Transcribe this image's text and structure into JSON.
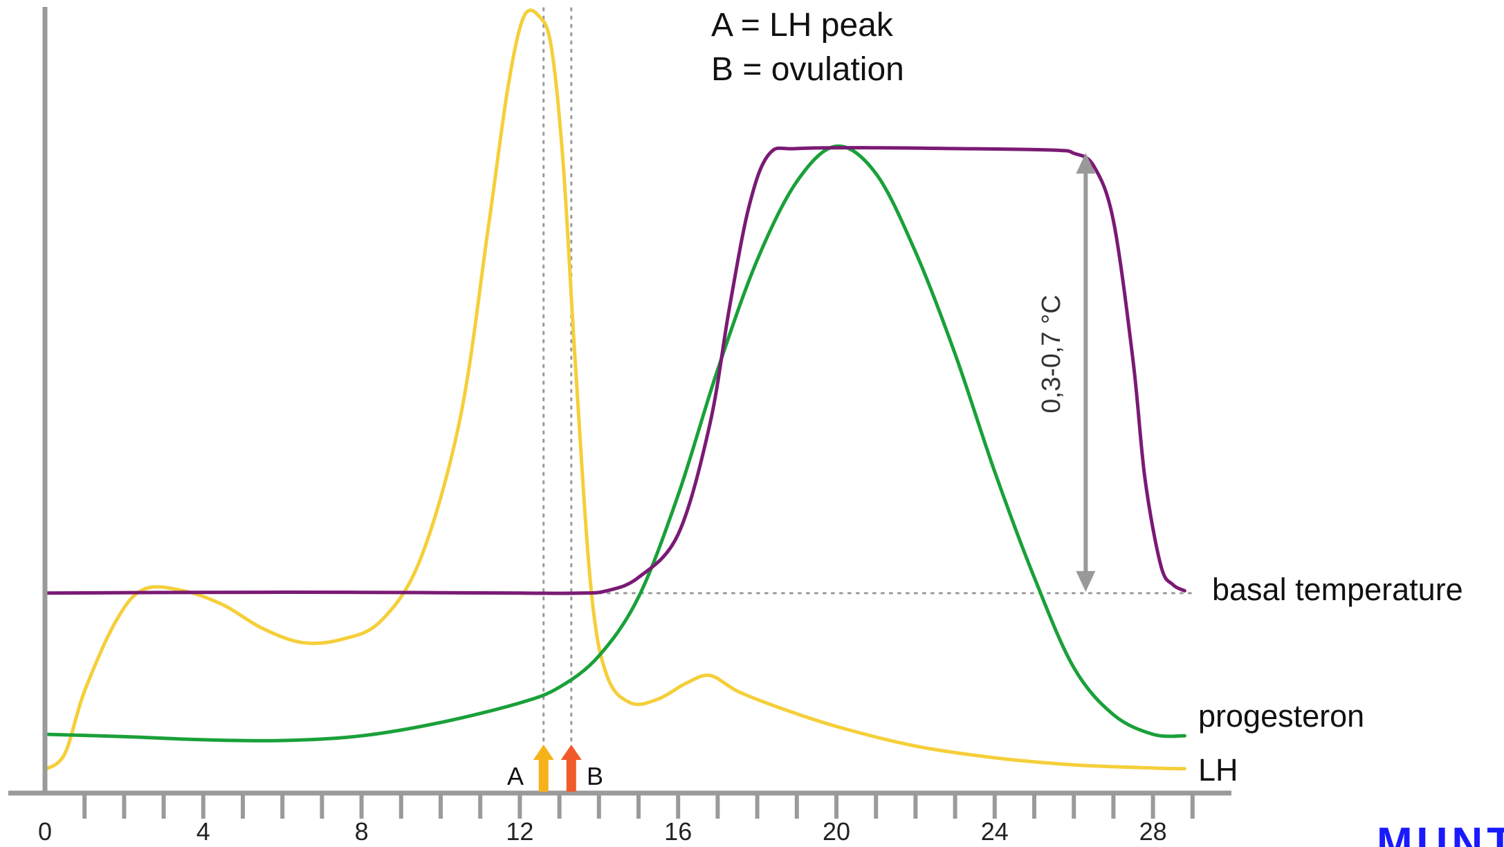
{
  "chart_data": {
    "type": "line",
    "title": "",
    "xlabel": "",
    "ylabel": "",
    "xlim": [
      0,
      29
    ],
    "ylim": [
      0,
      100
    ],
    "x_tick_labels": [
      "0",
      "4",
      "8",
      "12",
      "16",
      "20",
      "24",
      "28"
    ],
    "x_tick_values": [
      0,
      4,
      8,
      12,
      16,
      20,
      24,
      28
    ],
    "x_minor_ticks_every": 1,
    "grid": false,
    "legend": {
      "placement": "top-center",
      "lines": [
        "A = LH peak",
        "B = ovulation"
      ]
    },
    "series": [
      {
        "name": "LH",
        "color": "#f5cf3a",
        "points": [
          [
            0,
            3
          ],
          [
            0.5,
            5
          ],
          [
            1,
            13
          ],
          [
            1.8,
            22
          ],
          [
            2.5,
            26
          ],
          [
            3.5,
            25.8
          ],
          [
            4.5,
            24
          ],
          [
            5.5,
            21
          ],
          [
            6.5,
            19.2
          ],
          [
            7.5,
            19.6
          ],
          [
            8.5,
            22
          ],
          [
            9.5,
            30
          ],
          [
            10.5,
            48
          ],
          [
            11.2,
            72
          ],
          [
            11.7,
            90
          ],
          [
            12.1,
            99
          ],
          [
            12.5,
            99
          ],
          [
            12.8,
            95
          ],
          [
            13.1,
            80
          ],
          [
            13.4,
            55
          ],
          [
            13.8,
            26
          ],
          [
            14.2,
            15
          ],
          [
            14.8,
            11.5
          ],
          [
            15.5,
            12
          ],
          [
            16.2,
            14
          ],
          [
            16.8,
            15
          ],
          [
            17.5,
            13
          ],
          [
            18.5,
            11
          ],
          [
            20,
            8.5
          ],
          [
            22,
            6
          ],
          [
            24,
            4.5
          ],
          [
            26,
            3.6
          ],
          [
            28,
            3.2
          ],
          [
            28.8,
            3.1
          ]
        ]
      },
      {
        "name": "progesteron",
        "color": "#1aa03a",
        "points": [
          [
            0,
            7.5
          ],
          [
            2,
            7.2
          ],
          [
            4,
            6.8
          ],
          [
            6,
            6.7
          ],
          [
            8,
            7.3
          ],
          [
            10,
            9
          ],
          [
            12,
            11.5
          ],
          [
            13,
            13.5
          ],
          [
            14,
            17.5
          ],
          [
            15,
            25
          ],
          [
            16,
            38
          ],
          [
            17,
            54
          ],
          [
            18,
            68
          ],
          [
            19,
            78
          ],
          [
            20,
            82.5
          ],
          [
            21,
            79
          ],
          [
            22,
            69
          ],
          [
            23,
            56
          ],
          [
            24,
            41
          ],
          [
            25,
            27.5
          ],
          [
            26,
            16
          ],
          [
            27,
            10
          ],
          [
            28,
            7.5
          ],
          [
            28.8,
            7.3
          ]
        ]
      },
      {
        "name": "basal temperature",
        "color": "#7a1a74",
        "points": [
          [
            0,
            25.5
          ],
          [
            4,
            25.6
          ],
          [
            8,
            25.6
          ],
          [
            12,
            25.5
          ],
          [
            13.5,
            25.5
          ],
          [
            14.2,
            25.8
          ],
          [
            15,
            27.5
          ],
          [
            16,
            33
          ],
          [
            16.8,
            47
          ],
          [
            17.3,
            62
          ],
          [
            17.8,
            75
          ],
          [
            18.3,
            81.5
          ],
          [
            19,
            82.2
          ],
          [
            21,
            82.3
          ],
          [
            23,
            82.2
          ],
          [
            25.5,
            82
          ],
          [
            26,
            81.6
          ],
          [
            26.5,
            80
          ],
          [
            27,
            73
          ],
          [
            27.5,
            55
          ],
          [
            27.8,
            40
          ],
          [
            28.2,
            29
          ],
          [
            28.5,
            26.6
          ],
          [
            28.8,
            25.8
          ]
        ]
      }
    ],
    "baseline_dotted_y": 25.5,
    "markers": [
      {
        "label": "A",
        "x": 12.6,
        "color": "#f7b21a"
      },
      {
        "label": "B",
        "x": 13.3,
        "color": "#f15a29"
      }
    ],
    "range_annotation": {
      "text": "0,3-0,7 °C",
      "x": 26.3,
      "y_from": 25.5,
      "y_to": 82,
      "color": "#999999"
    },
    "watermark": "MUNT"
  }
}
